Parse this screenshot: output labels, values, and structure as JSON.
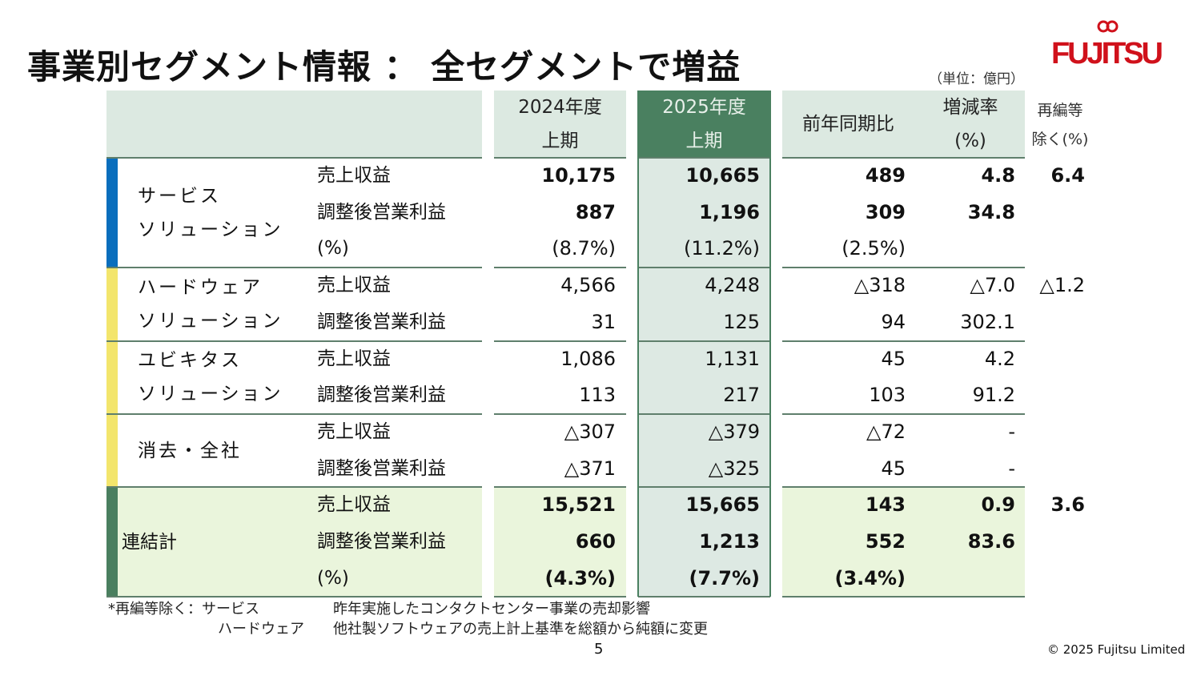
{
  "title": "事業別セグメント情報 ： 全セグメントで増益",
  "logo": {
    "text": "FUJITSU",
    "color": "#d0111b"
  },
  "unit": "（単位：億円）",
  "colors": {
    "header_bg": "#dce9e1",
    "current_header_bg": "#4a8060",
    "current_col_bg": "#dde9e3",
    "total_bg": "#eaf5dc",
    "service_bar": "#0a6ebd",
    "other_bar": "#f3e56c",
    "total_bar": "#4a7f5f"
  },
  "header": {
    "fy2024": [
      "2024年度",
      "上期"
    ],
    "fy2025": [
      "2025年度",
      "上期"
    ],
    "yoy": "前年同期比",
    "rate": [
      "増減率",
      "(%)"
    ],
    "excl": [
      "再編等",
      "除く(%)"
    ]
  },
  "segments": [
    {
      "name": [
        "サービス",
        "ソリューション"
      ],
      "bar": "service",
      "bold": true,
      "rows": [
        {
          "label": "売上収益",
          "fy2024": "10,175",
          "fy2025": "10,665",
          "yoy": "489",
          "rate": "4.8",
          "excl": "6.4"
        },
        {
          "label": "調整後営業利益",
          "fy2024": "887",
          "fy2025": "1,196",
          "yoy": "309",
          "rate": "34.8",
          "excl": ""
        },
        {
          "label": "(%)",
          "fy2024": "(8.7%)",
          "fy2025": "(11.2%)",
          "yoy": "(2.5%)",
          "rate": "",
          "excl": "",
          "light": true
        }
      ]
    },
    {
      "name": [
        "ハードウェア",
        "ソリューション"
      ],
      "bar": "other",
      "bold": false,
      "rows": [
        {
          "label": "売上収益",
          "fy2024": "4,566",
          "fy2025": "4,248",
          "yoy": "△318",
          "rate": "△7.0",
          "excl": "△1.2"
        },
        {
          "label": "調整後営業利益",
          "fy2024": "31",
          "fy2025": "125",
          "yoy": "94",
          "rate": "302.1",
          "excl": ""
        }
      ]
    },
    {
      "name": [
        "ユビキタス",
        "ソリューション"
      ],
      "bar": "other",
      "bold": false,
      "rows": [
        {
          "label": "売上収益",
          "fy2024": "1,086",
          "fy2025": "1,131",
          "yoy": "45",
          "rate": "4.2",
          "excl": ""
        },
        {
          "label": "調整後営業利益",
          "fy2024": "113",
          "fy2025": "217",
          "yoy": "103",
          "rate": "91.2",
          "excl": ""
        }
      ]
    },
    {
      "name": [
        "消去・全社"
      ],
      "bar": "other",
      "bold": false,
      "rows": [
        {
          "label": "売上収益",
          "fy2024": "△307",
          "fy2025": "△379",
          "yoy": "△72",
          "rate": "-",
          "excl": ""
        },
        {
          "label": "調整後営業利益",
          "fy2024": "△371",
          "fy2025": "△325",
          "yoy": "45",
          "rate": "-",
          "excl": ""
        }
      ]
    },
    {
      "name": [
        "連結計"
      ],
      "bar": "total",
      "bold": true,
      "total": true,
      "rows": [
        {
          "label": "売上収益",
          "fy2024": "15,521",
          "fy2025": "15,665",
          "yoy": "143",
          "rate": "0.9",
          "excl": "3.6"
        },
        {
          "label": "調整後営業利益",
          "fy2024": "660",
          "fy2025": "1,213",
          "yoy": "552",
          "rate": "83.6",
          "excl": ""
        },
        {
          "label": "(%)",
          "fy2024": "(4.3%)",
          "fy2025": "(7.7%)",
          "yoy": "(3.4%)",
          "rate": "",
          "excl": ""
        }
      ]
    }
  ],
  "footnote": {
    "line1_label": "*再編等除く：サービス",
    "line1_text": "昨年実施したコンタクトセンター事業の売却影響",
    "line2_label": "ハードウェア",
    "line2_text": "他社製ソフトウェアの売上計上基準を総額から純額に変更"
  },
  "page_number": "5",
  "copyright": "© 2025 Fujitsu Limited"
}
